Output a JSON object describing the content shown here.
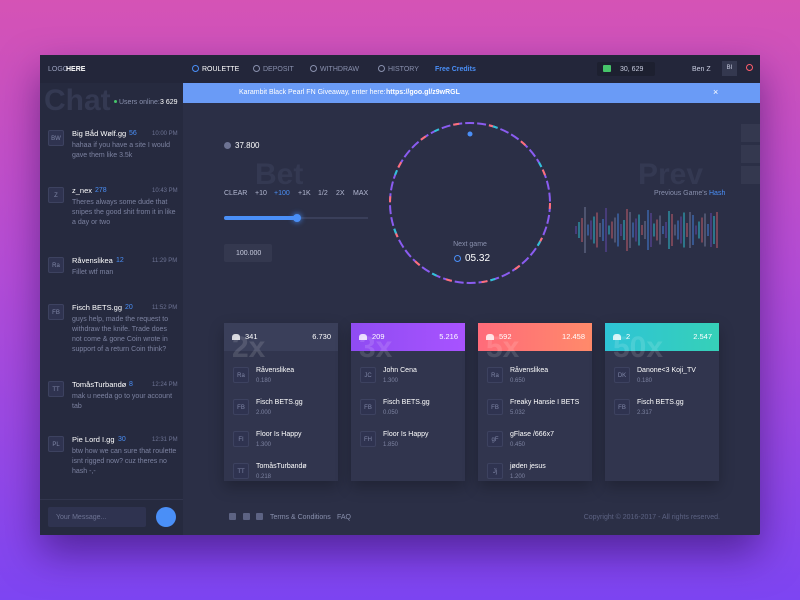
{
  "nav": {
    "logo_light": "LOGO",
    "logo_bold": "HERE",
    "items": [
      "ROULETTE",
      "DEPOSIT",
      "WITHDRAW",
      "HISTORY"
    ],
    "free_credits": "Free Credits",
    "balance": "30, 629",
    "user": "Ben Z",
    "avatar": "BI"
  },
  "chat": {
    "watermark": "Chat",
    "online_label": "Users online:",
    "online_count": "3 629",
    "input_placeholder": "Your Message...",
    "messages": [
      {
        "initials": "BW",
        "name": "Big Bắd Wølf.gg",
        "level": "56",
        "time": "10:00 PM",
        "text": "hahaa if you have a site I would gave them like 3.5k"
      },
      {
        "initials": "Z",
        "name": "z_nex",
        "level": "278",
        "time": "10:43 PM",
        "text": "Theres always some dude that snipes the good shit from it in like a day or two"
      },
      {
        "initials": "Ra",
        "name": "Råvenslikea",
        "level": "12",
        "time": "11:29 PM",
        "text": "Fillet wtf man"
      },
      {
        "initials": "FB",
        "name": "Fisch BETS.gg",
        "level": "20",
        "time": "11:52 PM",
        "text": "guys help, made the request to withdraw the knife. Trade does not come & gone Coin wrote in support of a return Coin think?"
      },
      {
        "initials": "TT",
        "name": "TomåsTurbandø",
        "level": "8",
        "time": "12:24 PM",
        "text": "mak u needa go to your account tab"
      },
      {
        "initials": "PL",
        "name": "Pie Lord I.gg",
        "level": "30",
        "time": "12:31 PM",
        "text": "btw how we can sure that roulette isnt rigged now? cuz theres no hash -,-"
      }
    ]
  },
  "banner": {
    "text": "Karambit Black Pearl FN Giveaway, enter here:",
    "link": "https://goo.gl/z9wRGL"
  },
  "bet": {
    "watermark": "Bet",
    "balance": "37.800",
    "buttons": [
      "CLEAR",
      "+10",
      "+100",
      "+1K",
      "1/2",
      "2X",
      "MAX"
    ],
    "amount": "100.000"
  },
  "wheel": {
    "label": "Next game",
    "timer": "05.32"
  },
  "prev": {
    "watermark": "Prev",
    "label": "Previous Game's",
    "link": "Hash"
  },
  "columns": [
    {
      "watermark": "2x",
      "users": "341",
      "total": "6.730",
      "entries": [
        {
          "initials": "Ra",
          "name": "Råvenslikea",
          "amount": "0.180"
        },
        {
          "initials": "FB",
          "name": "Fisch BETS.gg",
          "amount": "2.000"
        },
        {
          "initials": "FI",
          "name": "Floor Is Happy",
          "amount": "1.300"
        },
        {
          "initials": "TT",
          "name": "TomåsTurbandø",
          "amount": "0.218"
        }
      ]
    },
    {
      "watermark": "3x",
      "users": "209",
      "total": "5.216",
      "entries": [
        {
          "initials": "JC",
          "name": "John Cena",
          "amount": "1.300"
        },
        {
          "initials": "FB",
          "name": "Fisch BETS.gg",
          "amount": "0.050"
        },
        {
          "initials": "FH",
          "name": "Floor Is Happy",
          "amount": "1.850"
        }
      ]
    },
    {
      "watermark": "5x",
      "users": "592",
      "total": "12.458",
      "entries": [
        {
          "initials": "Ra",
          "name": "Råvenslikea",
          "amount": "0.650"
        },
        {
          "initials": "FB",
          "name": "Freaky Hansie I BETS",
          "amount": "5.032"
        },
        {
          "initials": "gF",
          "name": "gFlase /666x7",
          "amount": "0.450"
        },
        {
          "initials": "Jj",
          "name": "jøden jesus",
          "amount": "1.200"
        }
      ]
    },
    {
      "watermark": "50x",
      "users": "2",
      "total": "2.547",
      "entries": [
        {
          "initials": "DK",
          "name": "Danone<3 Koji_TV",
          "amount": "0.180"
        },
        {
          "initials": "FB",
          "name": "Fisch BETS.gg",
          "amount": "2.317"
        }
      ]
    }
  ],
  "footer": {
    "links": [
      "Terms & Conditions",
      "FAQ"
    ],
    "copyright": "Copyright © 2016-2017 - All rights reserved."
  }
}
